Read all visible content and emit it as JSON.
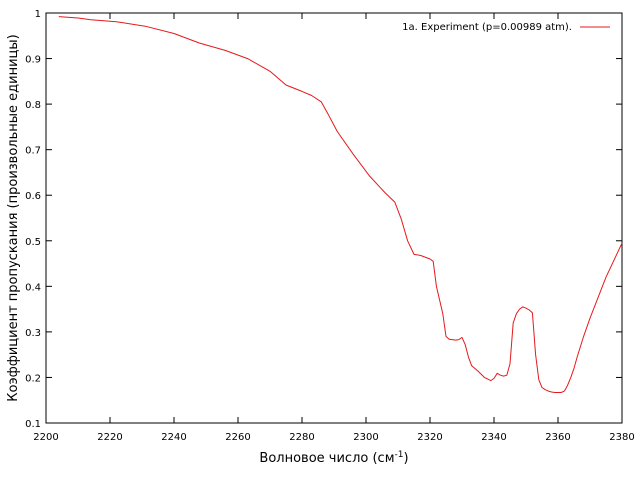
{
  "chart_data": {
    "type": "line",
    "title": "",
    "xlabel": "Волновое число (см",
    "xlabel_sup": "-1",
    "xlabel_end": ")",
    "ylabel": "Коэффициент пропускания (произвольные единицы)",
    "xlim": [
      2200,
      2380
    ],
    "ylim": [
      0.1,
      1.0
    ],
    "xticks": [
      "2200",
      "2220",
      "2240",
      "2260",
      "2280",
      "2300",
      "2320",
      "2340",
      "2360",
      "2380"
    ],
    "yticks": [
      "0.1",
      "0.2",
      "0.3",
      "0.4",
      "0.5",
      "0.6",
      "0.7",
      "0.8",
      "0.9",
      "1"
    ],
    "grid": false,
    "legend_position": "top-right",
    "series": [
      {
        "name": "1a. Experiment (p=0.00989 atm).",
        "color": "#e41a1c",
        "x": [
          2204,
          2210,
          2214,
          2222,
          2231,
          2240,
          2248,
          2256,
          2263,
          2270,
          2275,
          2280,
          2283,
          2286,
          2288,
          2291,
          2296,
          2301,
          2306,
          2309,
          2311,
          2313,
          2315,
          2317,
          2320,
          2321,
          2322,
          2324,
          2325,
          2326,
          2328,
          2329,
          2330,
          2331,
          2332,
          2333,
          2335,
          2337,
          2339,
          2340,
          2341,
          2342,
          2343,
          2344,
          2345,
          2346,
          2347,
          2348,
          2349,
          2350,
          2351,
          2352,
          2353,
          2354,
          2355,
          2356,
          2357,
          2358,
          2359,
          2361,
          2362,
          2363,
          2364,
          2365,
          2366,
          2368,
          2370,
          2375,
          2380
        ],
        "y": [
          0.992,
          0.989,
          0.985,
          0.981,
          0.971,
          0.955,
          0.934,
          0.918,
          0.9,
          0.872,
          0.842,
          0.828,
          0.819,
          0.805,
          0.78,
          0.74,
          0.69,
          0.643,
          0.605,
          0.585,
          0.548,
          0.5,
          0.47,
          0.468,
          0.46,
          0.455,
          0.4,
          0.34,
          0.29,
          0.284,
          0.282,
          0.283,
          0.288,
          0.272,
          0.245,
          0.226,
          0.214,
          0.2,
          0.193,
          0.198,
          0.209,
          0.205,
          0.203,
          0.205,
          0.23,
          0.32,
          0.34,
          0.35,
          0.355,
          0.352,
          0.348,
          0.342,
          0.25,
          0.195,
          0.178,
          0.173,
          0.17,
          0.168,
          0.167,
          0.167,
          0.17,
          0.183,
          0.2,
          0.22,
          0.245,
          0.29,
          0.33,
          0.42,
          0.495
        ]
      }
    ]
  }
}
